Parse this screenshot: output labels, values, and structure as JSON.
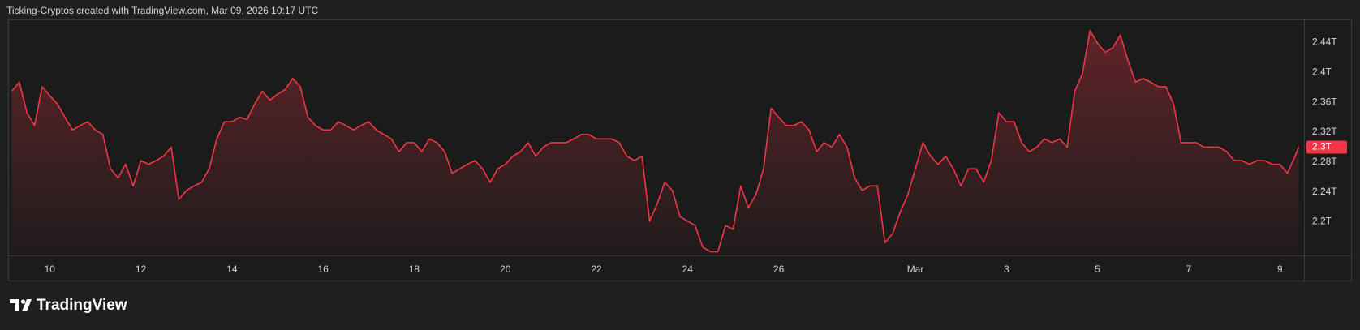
{
  "header": "Ticking-Cryptos created with TradingView.com, Mar 09, 2026 10:17 UTC",
  "brand": "TradingView",
  "chart_data": {
    "type": "line",
    "xlim": [
      "2026-02-09T02:30",
      "2026-03-09T12:45"
    ],
    "ylim": [
      2.155,
      2.471
    ],
    "yticks": [
      {
        "value": 2.2,
        "label": "2.2T"
      },
      {
        "value": 2.24,
        "label": "2.24T"
      },
      {
        "value": 2.28,
        "label": "2.28T"
      },
      {
        "value": 2.32,
        "label": "2.32T"
      },
      {
        "value": 2.36,
        "label": "2.36T"
      },
      {
        "value": 2.4,
        "label": "2.4T"
      },
      {
        "value": 2.44,
        "label": "2.44T"
      }
    ],
    "xticks": [
      {
        "value": "2026-02-10T00:00",
        "label": "10"
      },
      {
        "value": "2026-02-12T00:00",
        "label": "12"
      },
      {
        "value": "2026-02-14T00:00",
        "label": "14"
      },
      {
        "value": "2026-02-16T00:00",
        "label": "16"
      },
      {
        "value": "2026-02-18T00:00",
        "label": "18"
      },
      {
        "value": "2026-02-20T00:00",
        "label": "20"
      },
      {
        "value": "2026-02-22T00:00",
        "label": "22"
      },
      {
        "value": "2026-02-24T00:00",
        "label": "24"
      },
      {
        "value": "2026-02-26T00:00",
        "label": "26"
      },
      {
        "value": "2026-03-01T00:00",
        "label": "Mar"
      },
      {
        "value": "2026-03-03T00:00",
        "label": "3"
      },
      {
        "value": "2026-03-05T00:00",
        "label": "5"
      },
      {
        "value": "2026-03-07T00:00",
        "label": "7"
      },
      {
        "value": "2026-03-09T00:00",
        "label": "9"
      }
    ],
    "last_value_label": "2.3T",
    "x": [
      "2026-02-09T04:00",
      "2026-02-09T08:00",
      "2026-02-09T12:00",
      "2026-02-09T16:00",
      "2026-02-09T20:00",
      "2026-02-10T00:00",
      "2026-02-10T04:00",
      "2026-02-10T08:00",
      "2026-02-10T12:00",
      "2026-02-10T16:00",
      "2026-02-10T20:00",
      "2026-02-11T00:00",
      "2026-02-11T04:00",
      "2026-02-11T08:00",
      "2026-02-11T12:00",
      "2026-02-11T16:00",
      "2026-02-11T20:00",
      "2026-02-12T00:00",
      "2026-02-12T04:00",
      "2026-02-12T08:00",
      "2026-02-12T12:00",
      "2026-02-12T16:00",
      "2026-02-12T20:00",
      "2026-02-13T00:00",
      "2026-02-13T04:00",
      "2026-02-13T08:00",
      "2026-02-13T12:00",
      "2026-02-13T16:00",
      "2026-02-13T20:00",
      "2026-02-14T00:00",
      "2026-02-14T04:00",
      "2026-02-14T08:00",
      "2026-02-14T12:00",
      "2026-02-14T16:00",
      "2026-02-14T20:00",
      "2026-02-15T00:00",
      "2026-02-15T04:00",
      "2026-02-15T08:00",
      "2026-02-15T12:00",
      "2026-02-15T16:00",
      "2026-02-15T20:00",
      "2026-02-16T00:00",
      "2026-02-16T04:00",
      "2026-02-16T08:00",
      "2026-02-16T12:00",
      "2026-02-16T16:00",
      "2026-02-16T20:00",
      "2026-02-17T00:00",
      "2026-02-17T04:00",
      "2026-02-17T08:00",
      "2026-02-17T12:00",
      "2026-02-17T16:00",
      "2026-02-17T20:00",
      "2026-02-18T00:00",
      "2026-02-18T04:00",
      "2026-02-18T08:00",
      "2026-02-18T12:00",
      "2026-02-18T16:00",
      "2026-02-18T20:00",
      "2026-02-19T00:00",
      "2026-02-19T04:00",
      "2026-02-19T08:00",
      "2026-02-19T12:00",
      "2026-02-19T16:00",
      "2026-02-19T20:00",
      "2026-02-20T00:00",
      "2026-02-20T04:00",
      "2026-02-20T08:00",
      "2026-02-20T12:00",
      "2026-02-20T16:00",
      "2026-02-20T20:00",
      "2026-02-21T00:00",
      "2026-02-21T04:00",
      "2026-02-21T08:00",
      "2026-02-21T12:00",
      "2026-02-21T16:00",
      "2026-02-21T20:00",
      "2026-02-22T00:00",
      "2026-02-22T04:00",
      "2026-02-22T08:00",
      "2026-02-22T12:00",
      "2026-02-22T16:00",
      "2026-02-22T20:00",
      "2026-02-23T00:00",
      "2026-02-23T04:00",
      "2026-02-23T08:00",
      "2026-02-23T12:00",
      "2026-02-23T16:00",
      "2026-02-23T20:00",
      "2026-02-24T00:00",
      "2026-02-24T04:00",
      "2026-02-24T08:00",
      "2026-02-24T12:00",
      "2026-02-24T16:00",
      "2026-02-24T20:00",
      "2026-02-25T00:00",
      "2026-02-25T04:00",
      "2026-02-25T08:00",
      "2026-02-25T12:00",
      "2026-02-25T16:00",
      "2026-02-25T20:00",
      "2026-02-26T00:00",
      "2026-02-26T04:00",
      "2026-02-26T08:00",
      "2026-02-26T12:00",
      "2026-02-26T16:00",
      "2026-02-26T20:00",
      "2026-02-27T00:00",
      "2026-02-27T04:00",
      "2026-02-27T08:00",
      "2026-02-27T12:00",
      "2026-02-27T16:00",
      "2026-02-27T20:00",
      "2026-02-28T00:00",
      "2026-02-28T04:00",
      "2026-02-28T08:00",
      "2026-02-28T12:00",
      "2026-02-28T16:00",
      "2026-02-28T20:00",
      "2026-03-01T00:00",
      "2026-03-01T04:00",
      "2026-03-01T08:00",
      "2026-03-01T12:00",
      "2026-03-01T16:00",
      "2026-03-01T20:00",
      "2026-03-02T00:00",
      "2026-03-02T04:00",
      "2026-03-02T08:00",
      "2026-03-02T12:00",
      "2026-03-02T16:00",
      "2026-03-02T20:00",
      "2026-03-03T00:00",
      "2026-03-03T04:00",
      "2026-03-03T08:00",
      "2026-03-03T12:00",
      "2026-03-03T16:00",
      "2026-03-03T20:00",
      "2026-03-04T00:00",
      "2026-03-04T04:00",
      "2026-03-04T08:00",
      "2026-03-04T12:00",
      "2026-03-04T16:00",
      "2026-03-04T20:00",
      "2026-03-05T00:00",
      "2026-03-05T04:00",
      "2026-03-05T08:00",
      "2026-03-05T12:00",
      "2026-03-05T16:00",
      "2026-03-05T20:00",
      "2026-03-06T00:00",
      "2026-03-06T04:00",
      "2026-03-06T08:00",
      "2026-03-06T12:00",
      "2026-03-06T16:00",
      "2026-03-06T20:00",
      "2026-03-07T00:00",
      "2026-03-07T04:00",
      "2026-03-07T08:00",
      "2026-03-07T12:00",
      "2026-03-07T16:00",
      "2026-03-07T20:00",
      "2026-03-08T00:00",
      "2026-03-08T04:00",
      "2026-03-08T08:00",
      "2026-03-08T12:00",
      "2026-03-08T16:00",
      "2026-03-08T20:00",
      "2026-03-09T00:00",
      "2026-03-09T04:00",
      "2026-03-09T08:00",
      "2026-03-09T10:00"
    ],
    "series": [
      {
        "color": "#f23645",
        "values": [
          2.375,
          2.387,
          2.346,
          2.329,
          2.381,
          2.369,
          2.358,
          2.34,
          2.323,
          2.329,
          2.334,
          2.323,
          2.317,
          2.271,
          2.259,
          2.277,
          2.248,
          2.282,
          2.277,
          2.282,
          2.288,
          2.3,
          2.23,
          2.242,
          2.248,
          2.253,
          2.271,
          2.311,
          2.334,
          2.334,
          2.34,
          2.337,
          2.358,
          2.375,
          2.363,
          2.371,
          2.377,
          2.392,
          2.381,
          2.34,
          2.329,
          2.323,
          2.323,
          2.334,
          2.329,
          2.323,
          2.329,
          2.334,
          2.323,
          2.317,
          2.311,
          2.294,
          2.306,
          2.306,
          2.294,
          2.311,
          2.306,
          2.294,
          2.265,
          2.271,
          2.277,
          2.282,
          2.271,
          2.253,
          2.271,
          2.277,
          2.288,
          2.294,
          2.306,
          2.288,
          2.3,
          2.306,
          2.306,
          2.306,
          2.311,
          2.317,
          2.317,
          2.311,
          2.311,
          2.311,
          2.306,
          2.288,
          2.282,
          2.288,
          2.201,
          2.224,
          2.253,
          2.242,
          2.207,
          2.201,
          2.195,
          2.166,
          2.16,
          2.16,
          2.195,
          2.19,
          2.248,
          2.219,
          2.236,
          2.271,
          2.352,
          2.34,
          2.329,
          2.329,
          2.334,
          2.323,
          2.294,
          2.306,
          2.3,
          2.317,
          2.3,
          2.259,
          2.242,
          2.248,
          2.248,
          2.172,
          2.184,
          2.213,
          2.236,
          2.271,
          2.306,
          2.288,
          2.277,
          2.288,
          2.271,
          2.248,
          2.271,
          2.271,
          2.253,
          2.282,
          2.346,
          2.334,
          2.334,
          2.306,
          2.294,
          2.3,
          2.311,
          2.306,
          2.311,
          2.3,
          2.375,
          2.398,
          2.456,
          2.439,
          2.427,
          2.433,
          2.45,
          2.416,
          2.387,
          2.392,
          2.387,
          2.381,
          2.381,
          2.358,
          2.306,
          2.306,
          2.306,
          2.3,
          2.3,
          2.3,
          2.294,
          2.282,
          2.282,
          2.277,
          2.282,
          2.282,
          2.277,
          2.277,
          2.265,
          2.288,
          2.3
        ]
      }
    ]
  }
}
